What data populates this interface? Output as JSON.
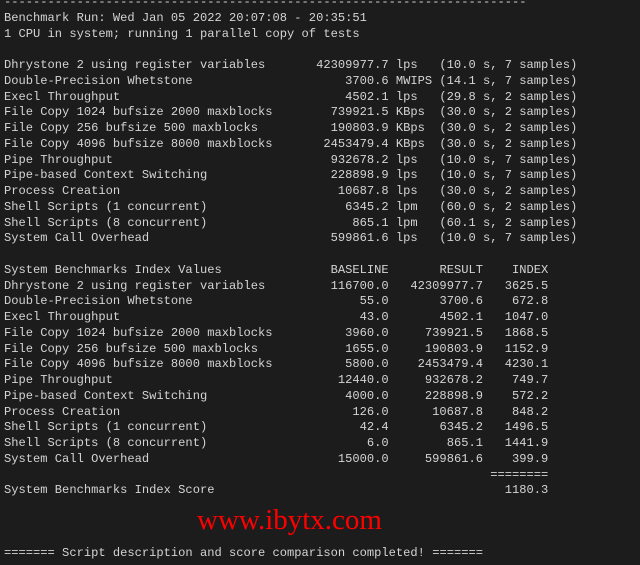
{
  "separator": "------------------------------------------------------------------------",
  "run_line": "Benchmark Run: Wed Jan 05 2022 20:07:08 - 20:35:51",
  "cpu_line": "1 CPU in system; running 1 parallel copy of tests",
  "results": [
    {
      "name": "Dhrystone 2 using register variables",
      "value": "42309977.7",
      "unit": "lps",
      "detail": "(10.0 s, 7 samples)"
    },
    {
      "name": "Double-Precision Whetstone",
      "value": "3700.6",
      "unit": "MWIPS",
      "detail": "(14.1 s, 7 samples)"
    },
    {
      "name": "Execl Throughput",
      "value": "4502.1",
      "unit": "lps",
      "detail": "(29.8 s, 2 samples)"
    },
    {
      "name": "File Copy 1024 bufsize 2000 maxblocks",
      "value": "739921.5",
      "unit": "KBps",
      "detail": "(30.0 s, 2 samples)"
    },
    {
      "name": "File Copy 256 bufsize 500 maxblocks",
      "value": "190803.9",
      "unit": "KBps",
      "detail": "(30.0 s, 2 samples)"
    },
    {
      "name": "File Copy 4096 bufsize 8000 maxblocks",
      "value": "2453479.4",
      "unit": "KBps",
      "detail": "(30.0 s, 2 samples)"
    },
    {
      "name": "Pipe Throughput",
      "value": "932678.2",
      "unit": "lps",
      "detail": "(10.0 s, 7 samples)"
    },
    {
      "name": "Pipe-based Context Switching",
      "value": "228898.9",
      "unit": "lps",
      "detail": "(10.0 s, 7 samples)"
    },
    {
      "name": "Process Creation",
      "value": "10687.8",
      "unit": "lps",
      "detail": "(30.0 s, 2 samples)"
    },
    {
      "name": "Shell Scripts (1 concurrent)",
      "value": "6345.2",
      "unit": "lpm",
      "detail": "(60.0 s, 2 samples)"
    },
    {
      "name": "Shell Scripts (8 concurrent)",
      "value": "865.1",
      "unit": "lpm",
      "detail": "(60.1 s, 2 samples)"
    },
    {
      "name": "System Call Overhead",
      "value": "599861.6",
      "unit": "lps",
      "detail": "(10.0 s, 7 samples)"
    }
  ],
  "index": {
    "title": "System Benchmarks Index Values",
    "headers": [
      "BASELINE",
      "RESULT",
      "INDEX"
    ],
    "rows": [
      {
        "name": "Dhrystone 2 using register variables",
        "baseline": "116700.0",
        "result": "42309977.7",
        "index": "3625.5"
      },
      {
        "name": "Double-Precision Whetstone",
        "baseline": "55.0",
        "result": "3700.6",
        "index": "672.8"
      },
      {
        "name": "Execl Throughput",
        "baseline": "43.0",
        "result": "4502.1",
        "index": "1047.0"
      },
      {
        "name": "File Copy 1024 bufsize 2000 maxblocks",
        "baseline": "3960.0",
        "result": "739921.5",
        "index": "1868.5"
      },
      {
        "name": "File Copy 256 bufsize 500 maxblocks",
        "baseline": "1655.0",
        "result": "190803.9",
        "index": "1152.9"
      },
      {
        "name": "File Copy 4096 bufsize 8000 maxblocks",
        "baseline": "5800.0",
        "result": "2453479.4",
        "index": "4230.1"
      },
      {
        "name": "Pipe Throughput",
        "baseline": "12440.0",
        "result": "932678.2",
        "index": "749.7"
      },
      {
        "name": "Pipe-based Context Switching",
        "baseline": "4000.0",
        "result": "228898.9",
        "index": "572.2"
      },
      {
        "name": "Process Creation",
        "baseline": "126.0",
        "result": "10687.8",
        "index": "848.2"
      },
      {
        "name": "Shell Scripts (1 concurrent)",
        "baseline": "42.4",
        "result": "6345.2",
        "index": "1496.5"
      },
      {
        "name": "Shell Scripts (8 concurrent)",
        "baseline": "6.0",
        "result": "865.1",
        "index": "1441.9"
      },
      {
        "name": "System Call Overhead",
        "baseline": "15000.0",
        "result": "599861.6",
        "index": "399.9"
      }
    ],
    "rule": "========",
    "score_label": "System Benchmarks Index Score",
    "score": "1180.3"
  },
  "footer": "======= Script description and score comparison completed! =======",
  "watermark": "www.ibytx.com",
  "colors": {
    "background": "#1c1c1c",
    "text": "#d4d4d4",
    "watermark": "#ff0000"
  }
}
